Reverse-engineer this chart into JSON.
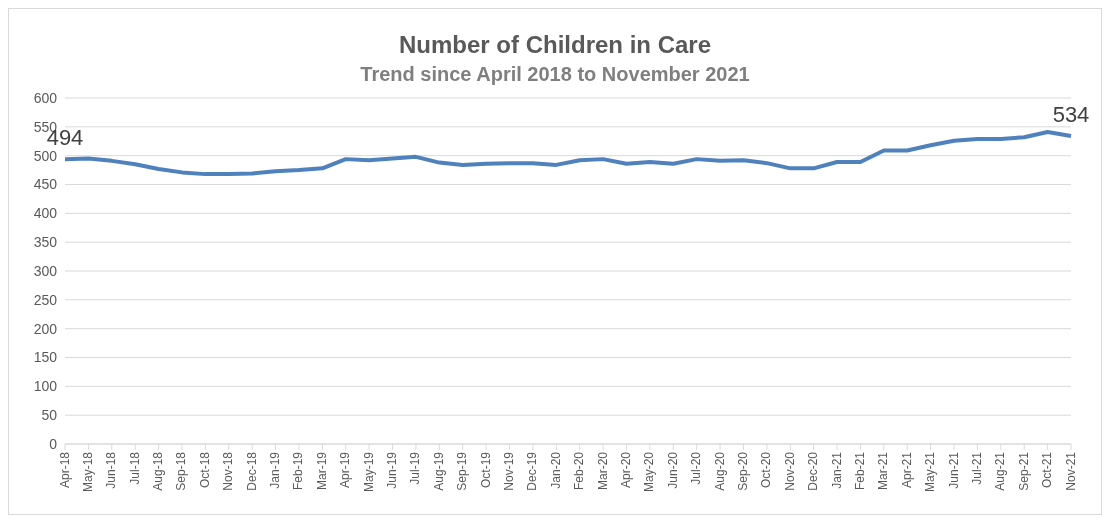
{
  "chart_data": {
    "type": "line",
    "title": "Number of Children in Care",
    "subtitle": "Trend since April 2018 to November 2021",
    "categories": [
      "Apr-18",
      "May-18",
      "Jun-18",
      "Jul-18",
      "Aug-18",
      "Sep-18",
      "Oct-18",
      "Nov-18",
      "Dec-18",
      "Jan-19",
      "Feb-19",
      "Mar-19",
      "Apr-19",
      "May-19",
      "Jun-19",
      "Jul-19",
      "Aug-19",
      "Sep-19",
      "Oct-19",
      "Nov-19",
      "Dec-19",
      "Jan-20",
      "Feb-20",
      "Mar-20",
      "Apr-20",
      "May-20",
      "Jun-20",
      "Jul-20",
      "Aug-20",
      "Sep-20",
      "Oct-20",
      "Nov-20",
      "Dec-20",
      "Jan-21",
      "Feb-21",
      "Mar-21",
      "Apr-21",
      "May-21",
      "Jun-21",
      "Jul-21",
      "Aug-21",
      "Sep-21",
      "Oct-21",
      "Nov-21"
    ],
    "values": [
      494,
      495,
      491,
      485,
      477,
      471,
      468,
      468,
      469,
      473,
      475,
      478,
      494,
      492,
      495,
      498,
      488,
      484,
      486,
      487,
      487,
      484,
      492,
      494,
      486,
      489,
      486,
      494,
      491,
      492,
      487,
      478,
      478,
      489,
      489,
      509,
      509,
      518,
      526,
      529,
      529,
      532,
      541,
      534
    ],
    "value_labels": [
      "494",
      null,
      null,
      null,
      null,
      null,
      null,
      null,
      null,
      null,
      null,
      null,
      null,
      null,
      null,
      null,
      null,
      null,
      null,
      null,
      null,
      null,
      null,
      null,
      null,
      null,
      null,
      null,
      null,
      null,
      null,
      null,
      null,
      null,
      null,
      null,
      null,
      null,
      null,
      null,
      null,
      null,
      null,
      "534"
    ],
    "color": "#4f81bd",
    "ylim": [
      0,
      600
    ],
    "yticks": [
      0,
      50,
      100,
      150,
      200,
      250,
      300,
      350,
      400,
      450,
      500,
      550,
      600
    ],
    "grid": "y",
    "legend": false,
    "marker": "none",
    "line_style": "solid"
  }
}
